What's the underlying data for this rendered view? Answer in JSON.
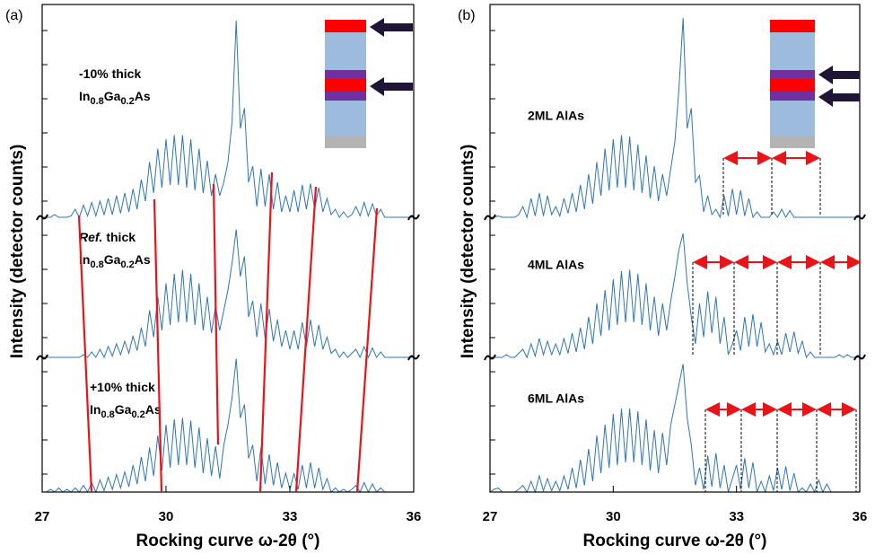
{
  "chart_data": [
    {
      "type": "line",
      "panel_label": "(a)",
      "x_label": "Rocking curve ω-2θ (°)",
      "y_label": "Intensity (detector counts)",
      "xlim": [
        27,
        36
      ],
      "xticks": [
        27,
        30,
        33,
        36
      ],
      "ylim": [
        0,
        3.62
      ],
      "x": [
        27.0,
        27.1,
        27.2,
        27.3,
        27.4,
        27.5,
        27.6,
        27.7,
        27.8,
        27.9,
        28.0,
        28.1,
        28.2,
        28.3,
        28.4,
        28.5,
        28.6,
        28.7,
        28.8,
        28.9,
        29.0,
        29.1,
        29.2,
        29.3,
        29.4,
        29.5,
        29.6,
        29.7,
        29.8,
        29.9,
        30.0,
        30.1,
        30.2,
        30.3,
        30.4,
        30.5,
        30.6,
        30.7,
        30.8,
        30.9,
        31.0,
        31.1,
        31.2,
        31.3,
        31.4,
        31.5,
        31.6,
        31.7,
        31.8,
        31.9,
        32.0,
        32.1,
        32.2,
        32.3,
        32.4,
        32.5,
        32.6,
        32.7,
        32.8,
        32.9,
        33.0,
        33.1,
        33.2,
        33.3,
        33.4,
        33.5,
        33.6,
        33.7,
        33.8,
        33.9,
        34.0,
        34.1,
        34.2,
        34.3,
        34.4,
        34.5,
        34.6,
        34.7,
        34.8,
        34.9,
        35.0,
        35.1,
        35.2,
        35.3,
        35.4,
        35.5,
        35.6,
        35.7,
        35.8,
        35.9,
        36.0
      ],
      "series": [
        {
          "prefix": "-10% thick",
          "formula": [
            "In",
            "0.8",
            "Ga",
            "0.2",
            "As"
          ],
          "color": "#2e75b6",
          "values": [
            2.04,
            2.04,
            2.04,
            2.06,
            2.04,
            2.04,
            2.04,
            2.05,
            2.1,
            2.04,
            2.13,
            2.05,
            2.15,
            2.05,
            2.16,
            2.06,
            2.18,
            2.06,
            2.2,
            2.07,
            2.22,
            2.08,
            2.25,
            2.1,
            2.32,
            2.16,
            2.45,
            2.22,
            2.55,
            2.26,
            2.62,
            2.28,
            2.65,
            2.28,
            2.65,
            2.26,
            2.62,
            2.24,
            2.55,
            2.22,
            2.46,
            2.2,
            2.36,
            2.2,
            2.3,
            2.45,
            2.75,
            3.5,
            2.7,
            2.85,
            2.3,
            2.42,
            2.12,
            2.4,
            2.12,
            2.36,
            2.1,
            2.3,
            2.08,
            2.2,
            2.08,
            2.24,
            2.08,
            2.28,
            2.1,
            2.29,
            2.1,
            2.26,
            2.08,
            2.18,
            2.06,
            2.1,
            2.04,
            2.08,
            2.04,
            2.06,
            2.12,
            2.05,
            2.15,
            2.05,
            2.14,
            2.05,
            2.1,
            2.04,
            2.04,
            2.04,
            2.04,
            2.04,
            2.04,
            2.04,
            2.04
          ]
        },
        {
          "prefix_italic": "Ref.",
          "prefix": "thick",
          "formula": [
            "In",
            "0.8",
            "Ga",
            "0.2",
            "As"
          ],
          "color": "#2e75b6",
          "values": [
            1.0,
            1.0,
            1.0,
            1.0,
            1.0,
            1.0,
            1.0,
            1.0,
            1.0,
            1.0,
            1.02,
            1.0,
            1.04,
            1.0,
            1.06,
            1.0,
            1.08,
            1.01,
            1.1,
            1.02,
            1.12,
            1.03,
            1.16,
            1.05,
            1.22,
            1.08,
            1.35,
            1.15,
            1.45,
            1.2,
            1.55,
            1.24,
            1.62,
            1.26,
            1.65,
            1.26,
            1.62,
            1.24,
            1.55,
            1.2,
            1.45,
            1.18,
            1.38,
            1.2,
            1.35,
            1.5,
            1.7,
            1.95,
            1.6,
            1.75,
            1.3,
            1.42,
            1.15,
            1.4,
            1.14,
            1.36,
            1.12,
            1.28,
            1.08,
            1.2,
            1.06,
            1.2,
            1.06,
            1.26,
            1.08,
            1.28,
            1.08,
            1.24,
            1.06,
            1.15,
            1.03,
            1.06,
            1.0,
            1.04,
            1.0,
            1.03,
            1.06,
            1.0,
            1.08,
            1.0,
            1.07,
            1.0,
            1.04,
            1.0,
            1.0,
            1.0,
            1.0,
            1.0,
            1.0,
            1.0,
            1.0
          ]
        },
        {
          "prefix": "+10% thick",
          "formula": [
            "In",
            "0.8",
            "Ga",
            "0.2",
            "As"
          ],
          "color": "#2e75b6",
          "values": [
            0,
            0,
            0.02,
            0,
            0.03,
            0,
            0.02,
            0,
            0.03,
            0,
            0.05,
            0,
            0.07,
            0,
            0.09,
            0.01,
            0.11,
            0.02,
            0.13,
            0.03,
            0.15,
            0.04,
            0.2,
            0.06,
            0.26,
            0.08,
            0.33,
            0.12,
            0.42,
            0.16,
            0.5,
            0.18,
            0.54,
            0.2,
            0.55,
            0.2,
            0.53,
            0.18,
            0.48,
            0.14,
            0.4,
            0.12,
            0.34,
            0.1,
            0.35,
            0.5,
            0.7,
            0.99,
            0.55,
            0.65,
            0.25,
            0.35,
            0.08,
            0.33,
            0.06,
            0.28,
            0.05,
            0.22,
            0.03,
            0.14,
            0.02,
            0.14,
            0.02,
            0.2,
            0.03,
            0.22,
            0.03,
            0.18,
            0.02,
            0.1,
            0,
            0.03,
            0,
            0.02,
            0,
            0.02,
            0.05,
            0,
            0.07,
            0,
            0.06,
            0,
            0.03,
            0,
            0,
            0,
            0,
            0,
            0,
            0,
            0
          ]
        }
      ]
    },
    {
      "type": "line",
      "panel_label": "(b)",
      "x_label": "Rocking curve ω-2θ (°)",
      "y_label": "Intensity (detector counts)",
      "xlim": [
        27,
        36
      ],
      "xticks": [
        27,
        30,
        33,
        36
      ],
      "ylim": [
        0,
        3.62
      ],
      "x": [
        27.0,
        27.1,
        27.2,
        27.3,
        27.4,
        27.5,
        27.6,
        27.7,
        27.8,
        27.9,
        28.0,
        28.1,
        28.2,
        28.3,
        28.4,
        28.5,
        28.6,
        28.7,
        28.8,
        28.9,
        29.0,
        29.1,
        29.2,
        29.3,
        29.4,
        29.5,
        29.6,
        29.7,
        29.8,
        29.9,
        30.0,
        30.1,
        30.2,
        30.3,
        30.4,
        30.5,
        30.6,
        30.7,
        30.8,
        30.9,
        31.0,
        31.1,
        31.2,
        31.3,
        31.4,
        31.5,
        31.6,
        31.7,
        31.8,
        31.9,
        32.0,
        32.1,
        32.2,
        32.3,
        32.4,
        32.5,
        32.6,
        32.7,
        32.8,
        32.9,
        33.0,
        33.1,
        33.2,
        33.3,
        33.4,
        33.5,
        33.6,
        33.7,
        33.8,
        33.9,
        34.0,
        34.1,
        34.2,
        34.3,
        34.4,
        34.5,
        34.6,
        34.7,
        34.8,
        34.9,
        35.0,
        35.1,
        35.2,
        35.3,
        35.4,
        35.5,
        35.6,
        35.7,
        35.8,
        35.9,
        36.0
      ],
      "series": [
        {
          "label": "2ML AlAs",
          "color": "#2e75b6",
          "values": [
            2.04,
            2.04,
            2.05,
            2.04,
            2.04,
            2.04,
            2.04,
            2.06,
            2.12,
            2.04,
            2.18,
            2.05,
            2.22,
            2.05,
            2.2,
            2.06,
            2.12,
            2.05,
            2.18,
            2.07,
            2.22,
            2.08,
            2.28,
            2.1,
            2.36,
            2.14,
            2.45,
            2.2,
            2.55,
            2.24,
            2.62,
            2.26,
            2.65,
            2.26,
            2.64,
            2.24,
            2.58,
            2.22,
            2.5,
            2.18,
            2.42,
            2.16,
            2.36,
            2.2,
            2.4,
            2.6,
            3.0,
            3.52,
            2.7,
            2.85,
            2.3,
            2.35,
            2.08,
            2.2,
            2.06,
            2.1,
            2.04,
            2.2,
            2.05,
            2.25,
            2.06,
            2.24,
            2.05,
            2.18,
            2.04,
            2.08,
            2.04,
            2.04,
            2.04,
            2.08,
            2.04,
            2.1,
            2.04,
            2.09,
            2.04,
            2.04,
            2.04,
            2.04,
            2.04,
            2.04,
            2.04,
            2.04,
            2.04,
            2.04,
            2.04,
            2.04,
            2.04,
            2.04,
            2.04,
            2.04,
            2.04
          ]
        },
        {
          "label": "4ML AlAs",
          "color": "#2e75b6",
          "values": [
            1.0,
            1.0,
            1.0,
            1.0,
            1.02,
            1.0,
            1.0,
            1.03,
            1.06,
            1.0,
            1.1,
            1.01,
            1.14,
            1.02,
            1.12,
            1.02,
            1.1,
            1.02,
            1.14,
            1.03,
            1.18,
            1.04,
            1.22,
            1.06,
            1.3,
            1.1,
            1.4,
            1.16,
            1.5,
            1.2,
            1.58,
            1.24,
            1.64,
            1.26,
            1.65,
            1.26,
            1.62,
            1.24,
            1.55,
            1.2,
            1.45,
            1.16,
            1.4,
            1.2,
            1.42,
            1.6,
            1.8,
            1.92,
            1.55,
            1.3,
            1.1,
            1.4,
            1.15,
            1.49,
            1.18,
            1.45,
            1.1,
            1.3,
            1.02,
            1.1,
            1.2,
            1.05,
            1.3,
            1.08,
            1.32,
            1.08,
            1.26,
            1.04,
            1.1,
            1.02,
            1.12,
            1.02,
            1.18,
            1.04,
            1.19,
            1.03,
            1.12,
            1.0,
            1.04,
            1.0,
            1.0,
            1.0,
            1.0,
            1.0,
            1.0,
            1.02,
            1.0,
            1.02,
            1.0,
            1.0,
            1.0
          ]
        },
        {
          "label": "6ML AlAs",
          "color": "#2e75b6",
          "values": [
            0,
            0.02,
            0.03,
            0,
            0,
            0,
            0,
            0.02,
            0.05,
            0,
            0.08,
            0,
            0.12,
            0.01,
            0.1,
            0.01,
            0.08,
            0.01,
            0.12,
            0.02,
            0.18,
            0.03,
            0.24,
            0.05,
            0.32,
            0.08,
            0.42,
            0.14,
            0.5,
            0.18,
            0.58,
            0.2,
            0.62,
            0.22,
            0.62,
            0.22,
            0.6,
            0.2,
            0.54,
            0.16,
            0.46,
            0.14,
            0.44,
            0.2,
            0.5,
            0.65,
            0.8,
            0.95,
            0.55,
            0.35,
            0.05,
            0.18,
            0.02,
            0.27,
            0.04,
            0.29,
            0.03,
            0.2,
            0,
            0.1,
            0.2,
            0.02,
            0.25,
            0.03,
            0.22,
            0,
            0.08,
            0,
            0.12,
            0.01,
            0.18,
            0.02,
            0.19,
            0.01,
            0.14,
            0,
            0.03,
            0,
            0.06,
            0,
            0.09,
            0,
            0.06,
            0,
            0,
            0,
            0,
            0,
            0,
            0,
            0
          ]
        }
      ]
    }
  ]
}
